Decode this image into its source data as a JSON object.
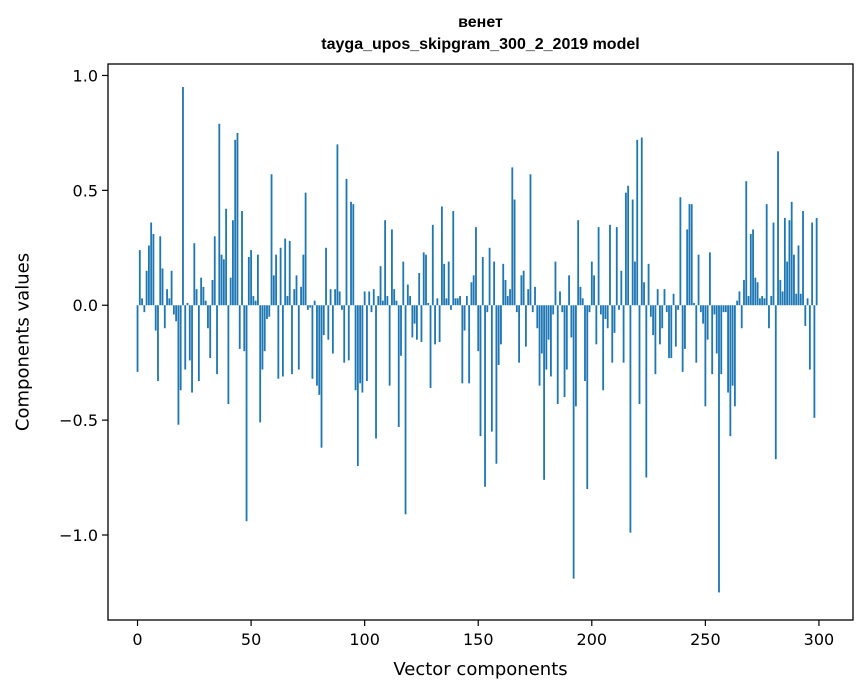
{
  "chart_data": {
    "type": "bar",
    "title": "венет",
    "subtitle": "tayga_upos_skipgram_300_2_2019 model",
    "xlabel": "Vector components",
    "ylabel": "Components values",
    "xlim": [
      -13,
      315
    ],
    "ylim": [
      -1.37,
      1.05
    ],
    "xticks": [
      0,
      50,
      100,
      150,
      200,
      250,
      300
    ],
    "xtick_labels": [
      "0",
      "50",
      "100",
      "150",
      "200",
      "250",
      "300"
    ],
    "yticks": [
      -1.0,
      -0.5,
      0.0,
      0.5,
      1.0
    ],
    "ytick_labels": [
      "−1.0",
      "−0.5",
      "0.0",
      "0.5",
      "1.0"
    ],
    "grid": false,
    "bar_color": "#1f77b4",
    "categories_note": "component index 0..299",
    "values": [
      -0.29,
      0.24,
      0.03,
      -0.03,
      0.15,
      0.26,
      0.36,
      0.31,
      -0.11,
      -0.33,
      0.3,
      0.16,
      -0.1,
      0.07,
      0.03,
      0.15,
      -0.04,
      -0.07,
      -0.52,
      -0.37,
      0.95,
      -0.28,
      0.01,
      -0.24,
      -0.38,
      0.27,
      0.07,
      -0.33,
      0.12,
      0.08,
      0.02,
      -0.1,
      -0.23,
      0.11,
      0.3,
      -0.3,
      0.79,
      0.22,
      0.2,
      0.42,
      -0.43,
      0.12,
      0.37,
      0.72,
      0.75,
      -0.19,
      0.41,
      -0.2,
      -0.94,
      0.21,
      0.24,
      0.04,
      0.02,
      0.22,
      -0.51,
      -0.28,
      -0.2,
      -0.06,
      -0.05,
      0.57,
      0.13,
      0.22,
      -0.32,
      0.25,
      -0.31,
      0.29,
      0.04,
      0.28,
      -0.3,
      0.07,
      0.13,
      -0.28,
      0.08,
      0.22,
      0.49,
      -0.02,
      -0.01,
      -0.32,
      0.02,
      -0.35,
      -0.39,
      -0.62,
      -0.13,
      0.25,
      -0.15,
      0.07,
      -0.21,
      0.07,
      0.7,
      0.06,
      -0.02,
      -0.25,
      0.55,
      -0.24,
      0.45,
      0.44,
      -0.37,
      -0.7,
      -0.34,
      -0.38,
      0.06,
      -0.33,
      0.06,
      -0.03,
      0.07,
      -0.58,
      0.04,
      0.17,
      0.02,
      0.37,
      0.04,
      -0.35,
      0.33,
      0.07,
      0.02,
      -0.53,
      -0.22,
      0.19,
      -0.91,
      0.09,
      0.04,
      -0.14,
      -0.08,
      -0.15,
      0.14,
      -0.16,
      0.23,
      0.22,
      0.01,
      -0.36,
      0.35,
      -0.17,
      0.03,
      -0.16,
      0.43,
      0.18,
      0.03,
      0.19,
      -0.02,
      0.41,
      0.03,
      0.03,
      0.04,
      -0.34,
      -0.11,
      0.04,
      -0.34,
      0.1,
      0.13,
      0.34,
      -0.2,
      -0.57,
      0.21,
      -0.79,
      -0.03,
      0.25,
      -0.55,
      0.19,
      -0.69,
      -0.26,
      -0.17,
      0.18,
      0.11,
      0.04,
      0.07,
      0.6,
      0.46,
      -0.03,
      -0.25,
      0.13,
      0.15,
      -0.18,
      0.07,
      0.57,
      -0.03,
      0.08,
      -0.1,
      -0.35,
      -0.21,
      -0.76,
      -0.28,
      -0.15,
      -0.31,
      -0.04,
      0.19,
      -0.43,
      0.06,
      -0.03,
      -0.4,
      -0.28,
      0.13,
      -0.14,
      -1.19,
      -0.44,
      0.37,
      0.08,
      0.03,
      -0.33,
      -0.8,
      -0.03,
      0.19,
      0.13,
      -0.17,
      0.34,
      -0.04,
      -0.37,
      -0.06,
      -0.1,
      0.35,
      -0.25,
      -0.12,
      0.34,
      -0.02,
      0.15,
      -0.25,
      0.49,
      0.52,
      -0.99,
      0.46,
      0.19,
      0.72,
      -0.43,
      0.73,
      0.1,
      -0.75,
      0.18,
      -0.05,
      -0.13,
      -0.3,
      0.07,
      -0.17,
      -0.1,
      0.07,
      -0.03,
      -0.23,
      -0.23,
      0.05,
      -0.18,
      -0.02,
      0.47,
      -0.29,
      -0.19,
      0.33,
      0.44,
      0.44,
      0.01,
      -0.25,
      0.22,
      -0.03,
      -0.08,
      -0.44,
      -0.15,
      0.23,
      -0.3,
      -0.04,
      -0.21,
      -1.25,
      -0.3,
      -0.03,
      -0.03,
      -0.38,
      -0.57,
      -0.35,
      -0.44,
      0.02,
      0.06,
      -0.1,
      0.11,
      0.54,
      0.04,
      0.31,
      0.33,
      0.12,
      0.1,
      0.03,
      0.04,
      0.03,
      0.44,
      -0.1,
      0.04,
      0.36,
      -0.67,
      0.67,
      0.11,
      0.06,
      0.38,
      0.19,
      0.37,
      0.45,
      0.22,
      0.05,
      0.26,
      0.05,
      0.41,
      -0.09,
      0.03,
      -0.28,
      0.36,
      -0.49,
      0.38
    ]
  }
}
